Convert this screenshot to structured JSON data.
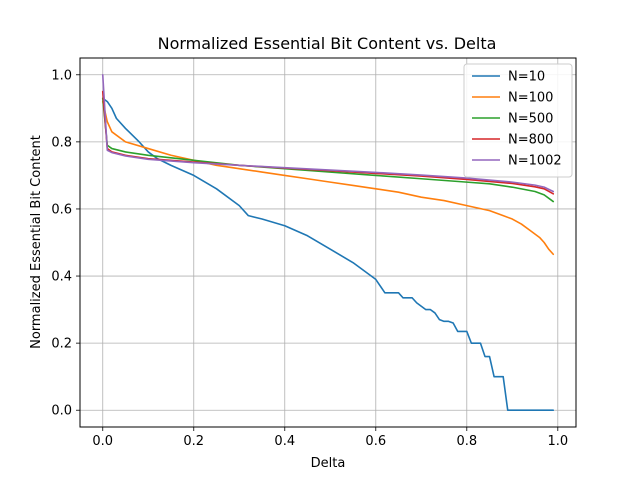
{
  "chart_data": {
    "type": "line",
    "title": "Normalized Essential Bit Content vs. Delta",
    "xlabel": "Delta",
    "ylabel": "Normalized Essential Bit Content",
    "xlim": [
      -0.05,
      1.04
    ],
    "ylim": [
      -0.05,
      1.05
    ],
    "xticks": [
      0.0,
      0.2,
      0.4,
      0.6,
      0.8,
      1.0
    ],
    "xtick_labels": [
      "0.0",
      "0.2",
      "0.4",
      "0.6",
      "0.8",
      "1.0"
    ],
    "yticks": [
      0.0,
      0.2,
      0.4,
      0.6,
      0.8,
      1.0
    ],
    "ytick_labels": [
      "0.0",
      "0.2",
      "0.4",
      "0.6",
      "0.8",
      "1.0"
    ],
    "grid": true,
    "legend_position": "top-right",
    "series": [
      {
        "name": "N=10",
        "color": "#1f77b4",
        "x": [
          0.0,
          0.01,
          0.02,
          0.03,
          0.05,
          0.08,
          0.1,
          0.12,
          0.15,
          0.2,
          0.25,
          0.3,
          0.32,
          0.35,
          0.4,
          0.45,
          0.5,
          0.55,
          0.6,
          0.62,
          0.63,
          0.65,
          0.66,
          0.68,
          0.69,
          0.71,
          0.72,
          0.73,
          0.74,
          0.75,
          0.76,
          0.77,
          0.78,
          0.79,
          0.8,
          0.81,
          0.82,
          0.83,
          0.84,
          0.85,
          0.86,
          0.87,
          0.88,
          0.89,
          0.9,
          0.95,
          0.99
        ],
        "y": [
          0.93,
          0.92,
          0.9,
          0.87,
          0.84,
          0.8,
          0.77,
          0.75,
          0.73,
          0.7,
          0.66,
          0.61,
          0.58,
          0.57,
          0.55,
          0.52,
          0.48,
          0.44,
          0.39,
          0.35,
          0.35,
          0.35,
          0.335,
          0.335,
          0.32,
          0.3,
          0.3,
          0.29,
          0.27,
          0.265,
          0.265,
          0.26,
          0.235,
          0.235,
          0.235,
          0.2,
          0.2,
          0.2,
          0.16,
          0.16,
          0.1,
          0.1,
          0.1,
          0.0,
          0.0,
          0.0,
          0.0
        ]
      },
      {
        "name": "N=100",
        "color": "#ff7f0e",
        "x": [
          0.0,
          0.01,
          0.02,
          0.05,
          0.1,
          0.15,
          0.2,
          0.25,
          0.3,
          0.35,
          0.4,
          0.45,
          0.5,
          0.55,
          0.6,
          0.65,
          0.7,
          0.75,
          0.8,
          0.85,
          0.88,
          0.9,
          0.92,
          0.94,
          0.96,
          0.97,
          0.98,
          0.99
        ],
        "y": [
          0.92,
          0.86,
          0.83,
          0.8,
          0.78,
          0.76,
          0.745,
          0.73,
          0.72,
          0.71,
          0.7,
          0.69,
          0.68,
          0.67,
          0.66,
          0.65,
          0.635,
          0.625,
          0.61,
          0.595,
          0.58,
          0.57,
          0.555,
          0.535,
          0.515,
          0.5,
          0.48,
          0.465
        ]
      },
      {
        "name": "N=500",
        "color": "#2ca02c",
        "x": [
          0.0,
          0.01,
          0.02,
          0.05,
          0.1,
          0.2,
          0.3,
          0.4,
          0.5,
          0.6,
          0.7,
          0.8,
          0.85,
          0.9,
          0.95,
          0.97,
          0.99
        ],
        "y": [
          0.93,
          0.79,
          0.78,
          0.77,
          0.76,
          0.745,
          0.73,
          0.72,
          0.71,
          0.7,
          0.69,
          0.68,
          0.675,
          0.665,
          0.652,
          0.642,
          0.622
        ]
      },
      {
        "name": "N=800",
        "color": "#d62728",
        "x": [
          0.0,
          0.01,
          0.02,
          0.05,
          0.1,
          0.2,
          0.3,
          0.4,
          0.5,
          0.6,
          0.7,
          0.8,
          0.9,
          0.95,
          0.97,
          0.99
        ],
        "y": [
          0.95,
          0.78,
          0.77,
          0.76,
          0.75,
          0.74,
          0.73,
          0.722,
          0.714,
          0.706,
          0.698,
          0.688,
          0.676,
          0.666,
          0.66,
          0.645
        ]
      },
      {
        "name": "N=1002",
        "color": "#9467bd",
        "x": [
          0.0,
          0.01,
          0.02,
          0.05,
          0.1,
          0.2,
          0.3,
          0.4,
          0.5,
          0.6,
          0.7,
          0.8,
          0.9,
          0.95,
          0.97,
          0.99
        ],
        "y": [
          1.0,
          0.775,
          0.768,
          0.758,
          0.748,
          0.738,
          0.73,
          0.723,
          0.716,
          0.709,
          0.701,
          0.692,
          0.68,
          0.671,
          0.665,
          0.652
        ]
      }
    ]
  }
}
